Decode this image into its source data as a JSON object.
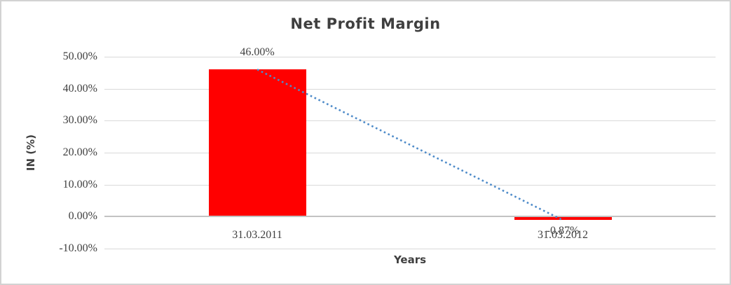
{
  "chart_data": {
    "type": "bar",
    "title": "Net Profit Margin",
    "xlabel": "Years",
    "ylabel": "IN (%)",
    "categories": [
      "31.03.2011",
      "31.03.2012"
    ],
    "values": [
      46.0,
      -0.87
    ],
    "data_labels": [
      "46.00%",
      "-0.87%"
    ],
    "y_ticks": [
      {
        "label": "50.00%",
        "value": 50
      },
      {
        "label": "40.00%",
        "value": 40
      },
      {
        "label": "30.00%",
        "value": 30
      },
      {
        "label": "20.00%",
        "value": 20
      },
      {
        "label": "10.00%",
        "value": 10
      },
      {
        "label": "0.00%",
        "value": 0
      },
      {
        "label": "-10.00%",
        "value": -10
      }
    ],
    "ylim": [
      -10,
      50
    ],
    "grid": true,
    "legend_position": "none",
    "bar_color": "#ff0000",
    "gridline_color": "#d9d9d9",
    "text_color": "#404040",
    "trendline": {
      "type": "linear",
      "style": "dotted",
      "color": "#4e8bc9",
      "points": [
        [
          0,
          46.0
        ],
        [
          1,
          -0.87
        ]
      ]
    }
  }
}
